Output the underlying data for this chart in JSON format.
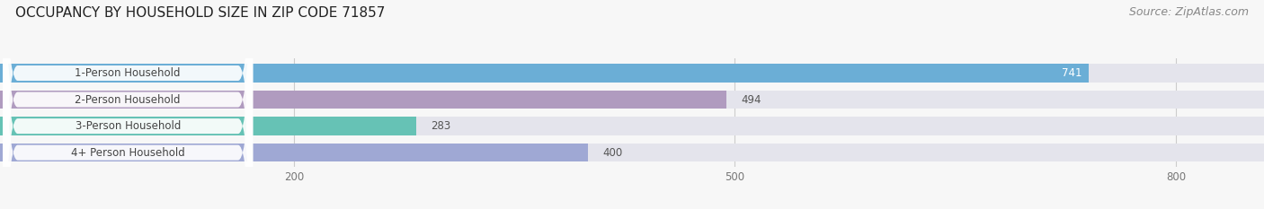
{
  "title": "OCCUPANCY BY HOUSEHOLD SIZE IN ZIP CODE 71857",
  "source": "Source: ZipAtlas.com",
  "categories": [
    "1-Person Household",
    "2-Person Household",
    "3-Person Household",
    "4+ Person Household"
  ],
  "values": [
    741,
    494,
    283,
    400
  ],
  "bar_colors": [
    "#6baed6",
    "#b09bbf",
    "#66c2b5",
    "#9fa8d4"
  ],
  "background_color": "#f7f7f7",
  "bar_bg_color": "#e4e4ec",
  "xlim": [
    0,
    860
  ],
  "xticks": [
    200,
    500,
    800
  ],
  "label_fontsize": 8.5,
  "value_fontsize": 8.5,
  "title_fontsize": 11,
  "source_fontsize": 9,
  "value_inside_color": "#ffffff",
  "value_outside_color": "#555555",
  "label_text_color": "#444444",
  "inside_threshold": 700
}
